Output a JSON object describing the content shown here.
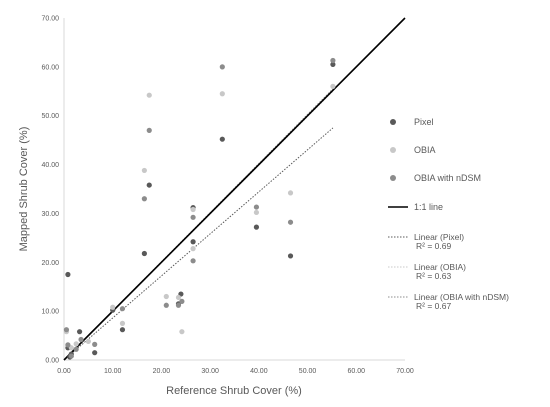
{
  "chart_data": {
    "type": "scatter",
    "xlabel": "Reference Shrub Cover (%)",
    "ylabel": "Mapped Shrub Cover (%)",
    "xlim": [
      0,
      70
    ],
    "ylim": [
      0,
      70
    ],
    "x_ticks": [
      "0.00",
      "10.00",
      "20.00",
      "30.00",
      "40.00",
      "50.00",
      "60.00",
      "70.00"
    ],
    "y_ticks": [
      "0.00",
      "10.00",
      "20.00",
      "30.00",
      "40.00",
      "50.00",
      "60.00",
      "70.00"
    ],
    "grid": false,
    "legend_position": "right",
    "series": [
      {
        "name": "Pixel",
        "color": "#595959",
        "points": [
          [
            0.8,
            17.5
          ],
          [
            0.8,
            2.5
          ],
          [
            1.5,
            1.2
          ],
          [
            1.2,
            0.6
          ],
          [
            3.2,
            5.8
          ],
          [
            6.3,
            1.5
          ],
          [
            10,
            10.2
          ],
          [
            12,
            6.2
          ],
          [
            16.5,
            21.8
          ],
          [
            17.5,
            35.8
          ],
          [
            23.5,
            11.5
          ],
          [
            24,
            13.5
          ],
          [
            26.5,
            24.2
          ],
          [
            26.5,
            31.2
          ],
          [
            32.5,
            45.2
          ],
          [
            39.5,
            27.2
          ],
          [
            46.5,
            21.3
          ],
          [
            55.2,
            60.5
          ]
        ]
      },
      {
        "name": "OBIA",
        "color": "#c8c8c8",
        "points": [
          [
            0.5,
            5.8
          ],
          [
            1.5,
            2.5
          ],
          [
            2.5,
            3.3
          ],
          [
            5,
            3.8
          ],
          [
            10,
            10.8
          ],
          [
            12,
            7.5
          ],
          [
            16.5,
            38.8
          ],
          [
            17.5,
            54.2
          ],
          [
            21,
            13
          ],
          [
            23.5,
            12.8
          ],
          [
            24.2,
            5.8
          ],
          [
            26.5,
            22.8
          ],
          [
            26.5,
            30.8
          ],
          [
            32.5,
            54.5
          ],
          [
            39.5,
            30.2
          ],
          [
            46.5,
            34.2
          ],
          [
            55.2,
            56
          ]
        ]
      },
      {
        "name": "OBIA with nDSM",
        "color": "#8c8c8c",
        "points": [
          [
            0.5,
            6.2
          ],
          [
            0.8,
            3.1
          ],
          [
            1.5,
            0.8
          ],
          [
            2.5,
            2.2
          ],
          [
            3.5,
            4.2
          ],
          [
            6.3,
            3.2
          ],
          [
            12,
            10.5
          ],
          [
            16.5,
            33
          ],
          [
            17.5,
            47
          ],
          [
            21,
            11.2
          ],
          [
            23.5,
            11.2
          ],
          [
            24.2,
            12
          ],
          [
            26.5,
            20.3
          ],
          [
            26.5,
            29.2
          ],
          [
            32.5,
            60
          ],
          [
            39.5,
            31.3
          ],
          [
            46.5,
            28.2
          ],
          [
            55.2,
            61.3
          ]
        ]
      }
    ],
    "reference_line": {
      "name": "1:1 line",
      "x": [
        0,
        70
      ],
      "y": [
        0,
        70
      ]
    },
    "trendlines": [
      {
        "name": "Linear (Pixel)",
        "r2": "R² = 0.69",
        "x": [
          0,
          55.2
        ],
        "y": [
          0,
          47.5
        ]
      },
      {
        "name": "Linear (OBIA)",
        "r2": "R² = 0.63",
        "x": [
          0,
          55.2
        ],
        "y": [
          0,
          55
        ]
      },
      {
        "name": "Linear (OBIA with nDSM)",
        "r2": "R² = 0.67",
        "x": [
          0,
          55.2
        ],
        "y": [
          0,
          55.5
        ]
      }
    ]
  }
}
